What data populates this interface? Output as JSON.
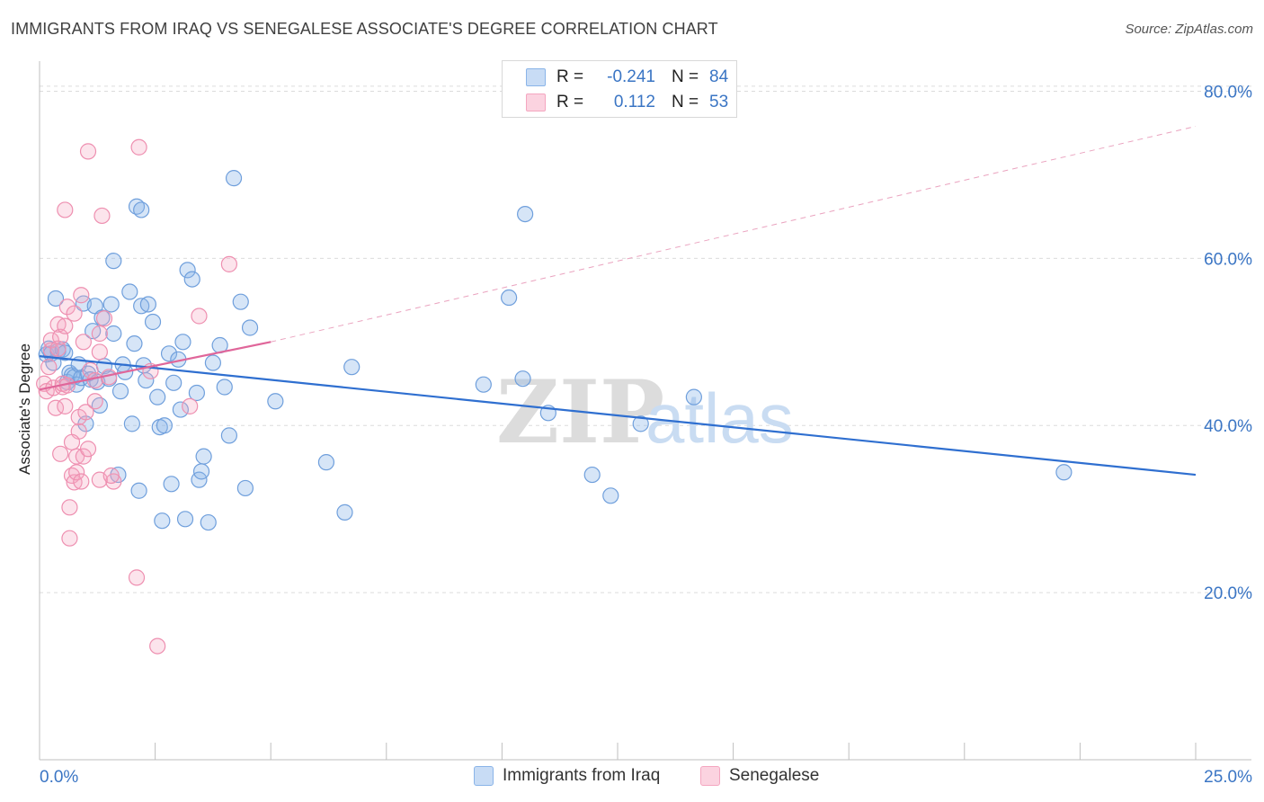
{
  "title": "IMMIGRANTS FROM IRAQ VS SENEGALESE ASSOCIATE'S DEGREE CORRELATION CHART",
  "source": "Source: ZipAtlas.com",
  "watermark": {
    "zip": "ZIP",
    "atlas": "atlas"
  },
  "legend": {
    "rows": [
      {
        "r_label": "R =",
        "r_value": "-0.241",
        "n_label": "N =",
        "n_value": "84",
        "color": "#8ab4e8"
      },
      {
        "r_label": "R =",
        "r_value": "0.112",
        "n_label": "N =",
        "n_value": "53",
        "color": "#f4a6c0"
      }
    ]
  },
  "bottom_legend": [
    "Immigrants from Iraq",
    "Senegalese"
  ],
  "chart_data": {
    "type": "scatter",
    "title": "IMMIGRANTS FROM IRAQ VS SENEGALESE ASSOCIATE'S DEGREE CORRELATION CHART",
    "xlabel": "",
    "ylabel": "Associate's Degree",
    "xlim": [
      0,
      25
    ],
    "ylim": [
      0,
      85
    ],
    "x_tick_labels": [
      "0.0%",
      "25.0%"
    ],
    "y_ticks": [
      20,
      40,
      60,
      80
    ],
    "y_tick_labels": [
      "20.0%",
      "40.0%",
      "60.0%",
      "80.0%"
    ],
    "grid": true,
    "colors": {
      "iraq": "#8ab4e8",
      "iraq_line": "#2f6fd0",
      "senegalese": "#f4a6c0",
      "senegalese_line": "#e0669a",
      "axis_text": "#3a75c4"
    },
    "series": [
      {
        "name": "Immigrants from Iraq",
        "trend": {
          "x": [
            0,
            25
          ],
          "y": [
            48.3,
            34.1
          ]
        },
        "points": [
          [
            0.15,
            48.5
          ],
          [
            0.2,
            49.2
          ],
          [
            0.25,
            48.6
          ],
          [
            0.3,
            47.5
          ],
          [
            0.35,
            55.2
          ],
          [
            0.4,
            48.9
          ],
          [
            0.5,
            49.1
          ],
          [
            0.55,
            48.7
          ],
          [
            0.6,
            45.2
          ],
          [
            0.65,
            46.3
          ],
          [
            0.7,
            46.0
          ],
          [
            0.75,
            45.8
          ],
          [
            0.8,
            44.9
          ],
          [
            0.85,
            47.3
          ],
          [
            0.9,
            45.7
          ],
          [
            0.95,
            54.6
          ],
          [
            1.0,
            40.2
          ],
          [
            1.05,
            46.2
          ],
          [
            1.1,
            45.5
          ],
          [
            1.15,
            51.3
          ],
          [
            1.2,
            54.3
          ],
          [
            1.25,
            45.2
          ],
          [
            1.3,
            42.4
          ],
          [
            1.35,
            52.9
          ],
          [
            1.4,
            47.1
          ],
          [
            1.5,
            45.6
          ],
          [
            1.55,
            54.5
          ],
          [
            1.6,
            51.0
          ],
          [
            1.7,
            34.1
          ],
          [
            1.75,
            44.1
          ],
          [
            1.8,
            47.3
          ],
          [
            1.85,
            46.4
          ],
          [
            1.95,
            56.0
          ],
          [
            2.0,
            40.2
          ],
          [
            2.05,
            49.8
          ],
          [
            2.15,
            32.2
          ],
          [
            2.2,
            54.3
          ],
          [
            2.25,
            47.2
          ],
          [
            2.3,
            45.4
          ],
          [
            2.35,
            54.5
          ],
          [
            2.45,
            52.4
          ],
          [
            2.55,
            43.4
          ],
          [
            2.6,
            39.8
          ],
          [
            2.65,
            28.6
          ],
          [
            2.7,
            40.0
          ],
          [
            2.8,
            48.6
          ],
          [
            2.85,
            33.0
          ],
          [
            2.9,
            45.1
          ],
          [
            3.0,
            47.9
          ],
          [
            3.05,
            41.9
          ],
          [
            3.1,
            50.0
          ],
          [
            3.15,
            28.8
          ],
          [
            3.2,
            58.6
          ],
          [
            3.3,
            57.5
          ],
          [
            3.4,
            43.9
          ],
          [
            3.45,
            33.5
          ],
          [
            3.5,
            34.5
          ],
          [
            3.55,
            36.3
          ],
          [
            3.65,
            28.4
          ],
          [
            3.75,
            47.5
          ],
          [
            3.9,
            49.6
          ],
          [
            4.0,
            44.6
          ],
          [
            4.1,
            38.8
          ],
          [
            4.35,
            54.8
          ],
          [
            4.45,
            32.5
          ],
          [
            4.55,
            51.7
          ],
          [
            5.1,
            42.9
          ],
          [
            6.2,
            35.6
          ],
          [
            6.6,
            29.6
          ],
          [
            6.75,
            47.0
          ],
          [
            9.6,
            44.9
          ],
          [
            10.15,
            55.3
          ],
          [
            10.45,
            45.6
          ],
          [
            10.5,
            65.3
          ],
          [
            11.0,
            41.5
          ],
          [
            11.95,
            34.1
          ],
          [
            12.35,
            31.6
          ],
          [
            13.0,
            40.2
          ],
          [
            14.15,
            43.4
          ],
          [
            22.15,
            34.4
          ],
          [
            4.2,
            69.6
          ],
          [
            2.1,
            66.2
          ],
          [
            2.2,
            65.8
          ],
          [
            1.6,
            59.7
          ]
        ]
      },
      {
        "name": "Senegalese",
        "trend": {
          "x": [
            0,
            5
          ],
          "y": [
            44.3,
            50.0
          ]
        },
        "trend_ext": {
          "x": [
            5,
            25
          ],
          "y": [
            50.0,
            75.8
          ]
        },
        "points": [
          [
            0.1,
            45.0
          ],
          [
            0.15,
            44.1
          ],
          [
            0.2,
            47.0
          ],
          [
            0.25,
            49.0
          ],
          [
            0.25,
            50.2
          ],
          [
            0.3,
            44.5
          ],
          [
            0.35,
            42.1
          ],
          [
            0.4,
            49.2
          ],
          [
            0.4,
            52.1
          ],
          [
            0.45,
            36.6
          ],
          [
            0.45,
            50.6
          ],
          [
            0.5,
            44.6
          ],
          [
            0.5,
            45.0
          ],
          [
            0.55,
            42.3
          ],
          [
            0.55,
            51.9
          ],
          [
            0.6,
            44.8
          ],
          [
            0.6,
            54.2
          ],
          [
            0.65,
            30.2
          ],
          [
            0.65,
            26.5
          ],
          [
            0.7,
            34.0
          ],
          [
            0.75,
            33.2
          ],
          [
            0.75,
            53.4
          ],
          [
            0.8,
            36.3
          ],
          [
            0.8,
            34.4
          ],
          [
            0.85,
            39.3
          ],
          [
            0.85,
            41.0
          ],
          [
            0.9,
            33.3
          ],
          [
            0.9,
            55.6
          ],
          [
            0.95,
            50.0
          ],
          [
            0.95,
            36.3
          ],
          [
            1.0,
            41.6
          ],
          [
            1.05,
            37.2
          ],
          [
            1.1,
            46.6
          ],
          [
            1.2,
            45.4
          ],
          [
            1.3,
            51.0
          ],
          [
            1.3,
            48.8
          ],
          [
            1.3,
            33.5
          ],
          [
            1.4,
            52.8
          ],
          [
            1.5,
            45.8
          ],
          [
            1.6,
            33.3
          ],
          [
            2.1,
            21.8
          ],
          [
            2.4,
            46.5
          ],
          [
            2.55,
            13.6
          ],
          [
            3.25,
            42.3
          ],
          [
            3.45,
            53.1
          ],
          [
            4.1,
            59.3
          ],
          [
            1.05,
            72.8
          ],
          [
            2.15,
            73.3
          ],
          [
            0.55,
            65.8
          ],
          [
            1.35,
            65.1
          ],
          [
            1.55,
            34.0
          ],
          [
            0.7,
            38.0
          ],
          [
            1.2,
            42.9
          ]
        ]
      }
    ]
  }
}
